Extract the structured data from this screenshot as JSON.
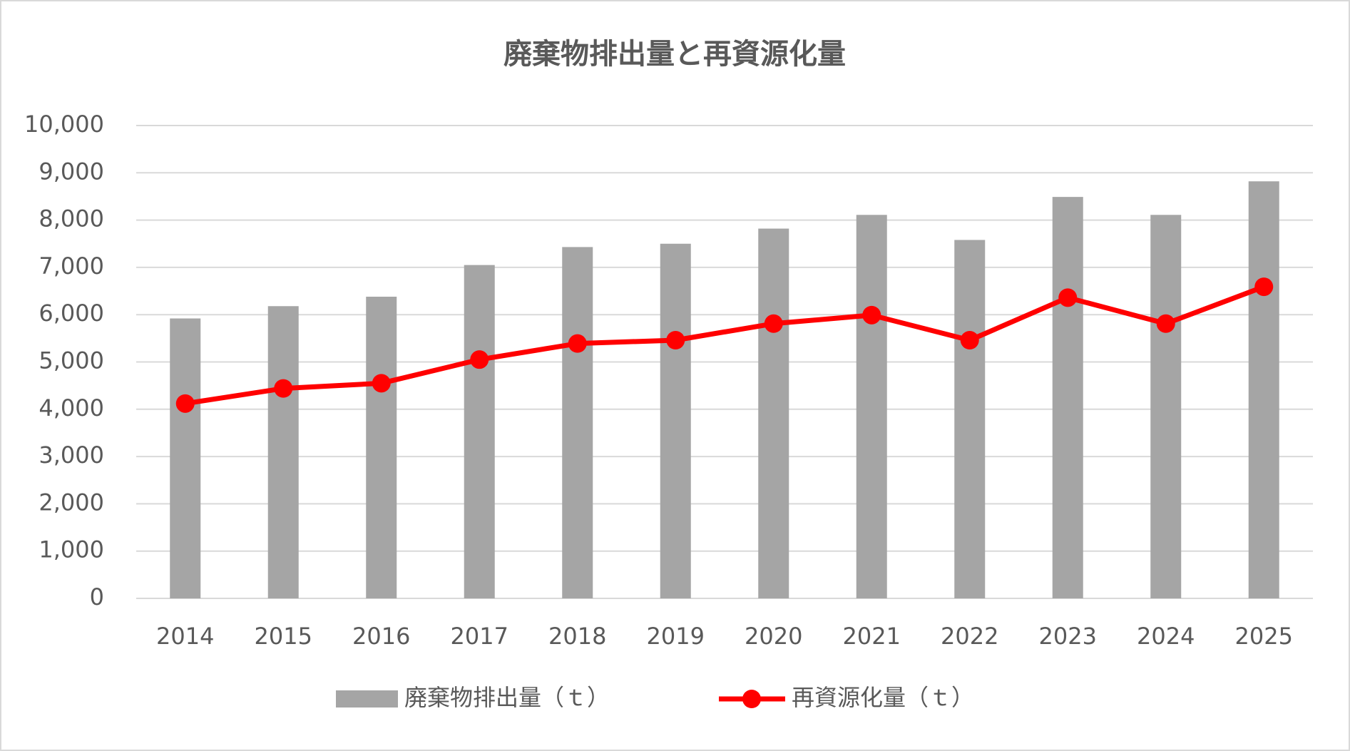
{
  "chart_data": {
    "type": "combo",
    "title": "廃棄物排出量と再資源化量",
    "categories": [
      "2014",
      "2015",
      "2016",
      "2017",
      "2018",
      "2019",
      "2020",
      "2021",
      "2022",
      "2023",
      "2024",
      "2025"
    ],
    "series": [
      {
        "name": "廃棄物排出量（ｔ）",
        "type": "bar",
        "color": "#a5a5a5",
        "values": [
          5920,
          6180,
          6380,
          7050,
          7430,
          7500,
          7820,
          8110,
          7580,
          8490,
          8110,
          8820
        ]
      },
      {
        "name": "再資源化量（ｔ）",
        "type": "line",
        "color": "#ff0000",
        "values": [
          4120,
          4440,
          4550,
          5050,
          5390,
          5460,
          5810,
          5990,
          5460,
          6360,
          5810,
          6590
        ]
      }
    ],
    "ylim": [
      0,
      10000
    ],
    "yticks": [
      0,
      {
        "value": 1000,
        "label": "1,000"
      },
      {
        "value": 2000,
        "label": "2,000"
      },
      {
        "value": 3000,
        "label": "3,000"
      },
      {
        "value": 4000,
        "label": "4,000"
      },
      {
        "value": 5000,
        "label": "5,000"
      },
      {
        "value": 6000,
        "label": "6,000"
      },
      {
        "value": 7000,
        "label": "7,000"
      },
      {
        "value": 8000,
        "label": "8,000"
      },
      {
        "value": 9000,
        "label": "9,000"
      },
      {
        "value": 10000,
        "label": "10,000"
      }
    ],
    "grid": true,
    "legend": "bottom"
  }
}
